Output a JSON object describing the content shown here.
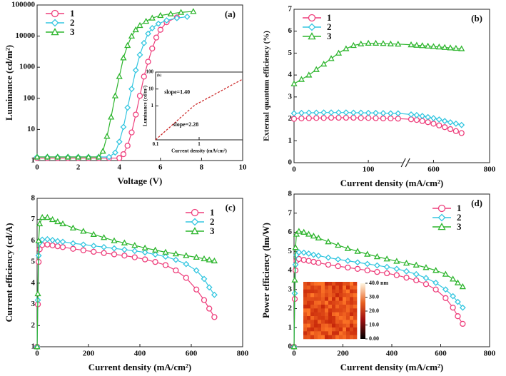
{
  "chart_data": [
    {
      "type": "line",
      "label": "(a)",
      "xlabel": "Voltage (V)",
      "ylabel": "Luminance (cd/m²)",
      "ylog": true,
      "xlim": [
        0,
        10
      ],
      "xticks": [
        0,
        2,
        4,
        6,
        8,
        10
      ],
      "ylim": [
        1,
        100000
      ],
      "yticks": [
        1,
        10,
        100,
        1000,
        10000,
        100000
      ],
      "legend": "upper left",
      "series": [
        {
          "name": "1",
          "color": "#ee3f7c",
          "marker": "circle",
          "x": [
            0,
            0.5,
            1,
            1.5,
            2,
            2.5,
            3,
            3.5,
            4,
            4.2,
            4.4,
            4.6,
            4.8,
            5.0,
            5.2,
            5.4,
            5.6,
            5.8,
            6.0,
            6.3,
            6.8
          ],
          "values": [
            1.2,
            1.2,
            1.2,
            1.2,
            1.2,
            1.2,
            1.2,
            1.2,
            1.2,
            1.6,
            3,
            8,
            30,
            120,
            500,
            1500,
            4000,
            9000,
            16000,
            28000,
            40000
          ]
        },
        {
          "name": "2",
          "color": "#33c6e0",
          "marker": "diamond",
          "x": [
            0,
            0.5,
            1,
            1.5,
            2,
            2.5,
            3,
            3.5,
            3.8,
            4.0,
            4.2,
            4.4,
            4.6,
            4.8,
            5.0,
            5.2,
            5.4,
            5.6,
            5.9,
            6.3,
            6.8,
            7.3
          ],
          "values": [
            1.3,
            1.3,
            1.3,
            1.3,
            1.3,
            1.3,
            1.3,
            1.3,
            1.8,
            4,
            12,
            50,
            200,
            800,
            2500,
            6000,
            12000,
            18000,
            25000,
            32000,
            38000,
            42000
          ]
        },
        {
          "name": "3",
          "color": "#2db52d",
          "marker": "triangle",
          "x": [
            0,
            0.5,
            1,
            1.5,
            2,
            2.5,
            3,
            3.2,
            3.4,
            3.6,
            3.8,
            4.0,
            4.2,
            4.4,
            4.6,
            4.8,
            5.0,
            5.3,
            5.6,
            6.0,
            6.5,
            7.0,
            7.6
          ],
          "values": [
            1.3,
            1.3,
            1.3,
            1.3,
            1.3,
            1.3,
            1.3,
            2,
            6,
            25,
            120,
            500,
            2000,
            5000,
            10000,
            16000,
            22000,
            30000,
            38000,
            46000,
            52000,
            58000,
            62000
          ]
        }
      ]
    },
    {
      "type": "line",
      "label": "(b)",
      "xlabel": "Current density (mA/cm²)",
      "ylabel": "External quantum efficiency (%)",
      "xlim": [
        0,
        800
      ],
      "xticks": [
        0,
        100,
        600,
        800
      ],
      "xbreak": [
        150,
        500
      ],
      "ylim": [
        0,
        7
      ],
      "yticks": [
        0,
        1,
        2,
        3,
        4,
        5,
        6,
        7
      ],
      "legend": "upper left",
      "series": [
        {
          "name": "1",
          "color": "#ee3f7c",
          "marker": "circle",
          "x": [
            0,
            10,
            20,
            30,
            40,
            50,
            60,
            70,
            80,
            90,
            100,
            110,
            120,
            130,
            140,
            520,
            540,
            560,
            580,
            600,
            620,
            640,
            660,
            680,
            700
          ],
          "values": [
            2.0,
            2.02,
            2.03,
            2.04,
            2.04,
            2.05,
            2.05,
            2.05,
            2.05,
            2.04,
            2.04,
            2.03,
            2.02,
            2.02,
            2.01,
            1.98,
            1.95,
            1.9,
            1.85,
            1.78,
            1.7,
            1.62,
            1.53,
            1.44,
            1.35
          ]
        },
        {
          "name": "2",
          "color": "#33c6e0",
          "marker": "diamond",
          "x": [
            0,
            10,
            20,
            30,
            40,
            50,
            60,
            70,
            80,
            90,
            100,
            110,
            120,
            130,
            140,
            520,
            540,
            560,
            580,
            600,
            620,
            640,
            660,
            680,
            700
          ],
          "values": [
            2.25,
            2.27,
            2.28,
            2.28,
            2.29,
            2.29,
            2.29,
            2.29,
            2.28,
            2.28,
            2.27,
            2.27,
            2.26,
            2.25,
            2.25,
            2.2,
            2.17,
            2.13,
            2.08,
            2.03,
            1.97,
            1.9,
            1.84,
            1.78,
            1.72
          ]
        },
        {
          "name": "3",
          "color": "#2db52d",
          "marker": "triangle",
          "x": [
            0,
            10,
            20,
            30,
            40,
            50,
            60,
            70,
            80,
            90,
            100,
            110,
            120,
            130,
            140,
            520,
            540,
            560,
            580,
            600,
            620,
            640,
            660,
            680,
            700
          ],
          "values": [
            3.6,
            3.8,
            4.0,
            4.25,
            4.5,
            4.75,
            5.0,
            5.2,
            5.35,
            5.42,
            5.45,
            5.45,
            5.44,
            5.42,
            5.41,
            5.38,
            5.36,
            5.34,
            5.32,
            5.3,
            5.28,
            5.26,
            5.24,
            5.22,
            5.2
          ]
        }
      ]
    },
    {
      "type": "line",
      "label": "(c)",
      "xlabel": "Current density (mA/cm²)",
      "ylabel": "Current efficiency (cd/A)",
      "xlim": [
        0,
        800
      ],
      "xticks": [
        0,
        200,
        400,
        600,
        800
      ],
      "ylim": [
        1,
        8
      ],
      "yticks": [
        1,
        2,
        3,
        4,
        5,
        6,
        7,
        8
      ],
      "legend": "upper right",
      "series": [
        {
          "name": "1",
          "color": "#ee3f7c",
          "marker": "circle",
          "x": [
            0,
            3,
            6,
            10,
            20,
            40,
            60,
            80,
            100,
            140,
            180,
            220,
            260,
            300,
            340,
            380,
            420,
            460,
            500,
            540,
            580,
            620,
            650,
            670,
            690
          ],
          "values": [
            1.0,
            3.0,
            5.0,
            5.6,
            5.8,
            5.82,
            5.78,
            5.74,
            5.7,
            5.62,
            5.55,
            5.48,
            5.42,
            5.36,
            5.3,
            5.22,
            5.12,
            5.0,
            4.85,
            4.6,
            4.25,
            3.7,
            3.2,
            2.8,
            2.4
          ]
        },
        {
          "name": "2",
          "color": "#33c6e0",
          "marker": "diamond",
          "x": [
            0,
            3,
            6,
            10,
            20,
            40,
            60,
            80,
            100,
            140,
            180,
            220,
            260,
            300,
            340,
            380,
            420,
            460,
            500,
            540,
            580,
            620,
            650,
            670,
            690
          ],
          "values": [
            1.0,
            3.2,
            5.3,
            5.9,
            6.05,
            6.07,
            6.03,
            5.98,
            5.95,
            5.88,
            5.82,
            5.76,
            5.7,
            5.64,
            5.58,
            5.52,
            5.45,
            5.35,
            5.25,
            5.1,
            4.9,
            4.6,
            4.2,
            3.8,
            3.45
          ]
        },
        {
          "name": "3",
          "color": "#2db52d",
          "marker": "triangle",
          "x": [
            0,
            3,
            6,
            10,
            20,
            40,
            60,
            80,
            100,
            140,
            180,
            220,
            260,
            300,
            340,
            380,
            420,
            460,
            500,
            540,
            580,
            620,
            650,
            670,
            690
          ],
          "values": [
            1.0,
            3.5,
            6.0,
            6.8,
            7.1,
            7.1,
            7.0,
            6.9,
            6.8,
            6.6,
            6.45,
            6.3,
            6.15,
            6.0,
            5.9,
            5.78,
            5.66,
            5.56,
            5.46,
            5.38,
            5.3,
            5.22,
            5.15,
            5.1,
            5.05
          ]
        }
      ]
    },
    {
      "type": "line",
      "label": "(d)",
      "xlabel": "Current density (mA/cm²)",
      "ylabel": "Power efficiency (lm/W)",
      "xlim": [
        0,
        800
      ],
      "xticks": [
        0,
        200,
        400,
        600,
        800
      ],
      "ylim": [
        0,
        8
      ],
      "yticks": [
        0,
        1,
        2,
        3,
        4,
        5,
        6,
        7,
        8
      ],
      "legend": "upper right",
      "colorbar": {
        "clim": [
          0,
          40
        ],
        "ticks": [
          {
            "value": 40,
            "label": "40.0 nm"
          },
          {
            "value": 30,
            "label": "30.0"
          },
          {
            "value": 20,
            "label": "20.0"
          },
          {
            "value": 10,
            "label": "10.0"
          },
          {
            "value": 0,
            "label": "0.00"
          }
        ]
      },
      "series": [
        {
          "name": "1",
          "color": "#ee3f7c",
          "marker": "circle",
          "x": [
            0,
            3,
            6,
            10,
            20,
            40,
            60,
            80,
            100,
            140,
            180,
            220,
            260,
            300,
            340,
            380,
            420,
            460,
            500,
            540,
            580,
            620,
            650,
            670,
            690
          ],
          "values": [
            0.0,
            2.5,
            4.0,
            4.5,
            4.6,
            4.55,
            4.5,
            4.45,
            4.4,
            4.3,
            4.22,
            4.15,
            4.08,
            4.0,
            3.92,
            3.85,
            3.75,
            3.62,
            3.48,
            3.28,
            3.0,
            2.55,
            2.05,
            1.6,
            1.2
          ]
        },
        {
          "name": "2",
          "color": "#33c6e0",
          "marker": "diamond",
          "x": [
            0,
            3,
            6,
            10,
            20,
            40,
            60,
            80,
            100,
            140,
            180,
            220,
            260,
            300,
            340,
            380,
            420,
            460,
            500,
            540,
            580,
            620,
            650,
            670,
            690
          ],
          "values": [
            0.0,
            2.8,
            4.3,
            4.8,
            4.95,
            4.93,
            4.88,
            4.82,
            4.77,
            4.67,
            4.58,
            4.5,
            4.42,
            4.34,
            4.26,
            4.18,
            4.08,
            3.95,
            3.8,
            3.6,
            3.35,
            3.0,
            2.65,
            2.35,
            2.05
          ]
        },
        {
          "name": "3",
          "color": "#2db52d",
          "marker": "triangle",
          "x": [
            0,
            3,
            6,
            10,
            20,
            40,
            60,
            80,
            100,
            140,
            180,
            220,
            260,
            300,
            340,
            380,
            420,
            460,
            500,
            540,
            580,
            620,
            650,
            670,
            690
          ],
          "values": [
            0.0,
            3.5,
            5.2,
            5.9,
            6.05,
            6.0,
            5.9,
            5.8,
            5.7,
            5.5,
            5.32,
            5.15,
            5.0,
            4.85,
            4.72,
            4.6,
            4.48,
            4.38,
            4.28,
            4.15,
            4.0,
            3.8,
            3.55,
            3.35,
            3.15
          ]
        }
      ]
    },
    {
      "type": "line",
      "label": "(b)",
      "xlabel": "Current density (mA/cm²)",
      "ylabel": "Luminance (cd/m²)",
      "xlog": true,
      "ylog": true,
      "xlim": [
        0.1,
        10
      ],
      "xticks": [
        0.1,
        1
      ],
      "ylim": [
        0.01,
        100
      ],
      "yticks": [
        1,
        10,
        100
      ],
      "annotations": [
        "slope=1.40",
        "slope=2.28"
      ],
      "series": [
        {
          "color": "#cc2a2a",
          "dash": "3 2",
          "x": [
            0.1,
            0.2,
            0.4,
            0.8,
            1.5,
            3,
            6,
            10
          ],
          "values": [
            0.01,
            0.049,
            0.24,
            1.14,
            2.7,
            7.1,
            18.8,
            38
          ]
        }
      ]
    }
  ]
}
